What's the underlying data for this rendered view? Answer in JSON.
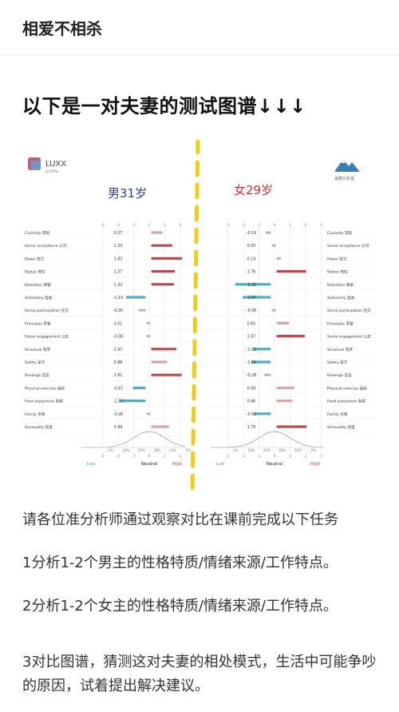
{
  "header": {
    "title": "相爱不相杀"
  },
  "post": {
    "title": "以下是一对夫妻的测试图谱↓↓↓"
  },
  "figure": {
    "logo_left": {
      "name": "LUXX",
      "sub": "profile"
    },
    "logo_right_text": "温格分析室",
    "male_label": "男31岁",
    "female_label": "女29岁",
    "scale_top": [
      "-3",
      "-2",
      "-1",
      "0",
      "1",
      "2",
      "3"
    ],
    "percent_labels": [
      "2%",
      "14%",
      "34%",
      "34%",
      "14%",
      "2%"
    ],
    "axis_low": "Low",
    "axis_neutral": "Neutral",
    "axis_high": "High",
    "colors": {
      "male_label": "#2f3f8f",
      "female_label": "#d03030",
      "high_bar": "#c0474d",
      "low_bar": "#4aaec9",
      "light_bar": "#d9a5a8",
      "grey_bar": "#b8b8b8",
      "divider": "#f3cc18"
    },
    "traits": [
      {
        "label": "Curiosity 求知",
        "male": 0.57,
        "female": -0.19,
        "male_text": "0.57",
        "female_text": "-0.19"
      },
      {
        "label": "Social acceptance 认可",
        "male": 1.2,
        "female": 0.03,
        "male_text": "1.20",
        "female_text": "0.03"
      },
      {
        "label": "Power 权力",
        "male": 1.83,
        "female": 0.14,
        "male_text": "1.83",
        "female_text": "0.14"
      },
      {
        "label": "Status 地位",
        "male": 1.37,
        "female": 1.76,
        "male_text": "1.37",
        "female_text": "1.76"
      },
      {
        "label": "Retention 保留",
        "male": 1.32,
        "female": -2.15,
        "male_text": "1.32",
        "female_text": "-2.15"
      },
      {
        "label": "Autonomy 自由",
        "male": -1.1,
        "female": -1.67,
        "male_text": "-1.10",
        "female_text": "-1.67"
      },
      {
        "label": "Social participation 社交",
        "male": -0.3,
        "female": -0.06,
        "male_text": "-0.30",
        "female_text": "-0.06"
      },
      {
        "label": "Principles 荣誉",
        "male": 0.01,
        "female": 0.65,
        "male_text": "0.01",
        "female_text": "0.65"
      },
      {
        "label": "Social engagement 公正",
        "male": -0.06,
        "female": 1.67,
        "male_text": "-0.06",
        "female_text": "1.67"
      },
      {
        "label": "Structure 有序",
        "male": 1.47,
        "female": -1.01,
        "male_text": "1.47",
        "female_text": "-1.01"
      },
      {
        "label": "Safety 安宁",
        "male": 0.88,
        "female": -1.11,
        "male_text": "0.88",
        "female_text": "-1.11"
      },
      {
        "label": "Revenge 还击",
        "male": 1.81,
        "female": -0.28,
        "male_text": "1.81",
        "female_text": "-0.28"
      },
      {
        "label": "Physical exercise 运动",
        "male": -0.67,
        "female": 0.99,
        "male_text": "-0.67",
        "female_text": "0.99"
      },
      {
        "label": "Food enjoyment 食欲",
        "male": -1.52,
        "female": 0.86,
        "male_text": "-1.52",
        "female_text": "0.86"
      },
      {
        "label": "Family 亲情",
        "male": -0.06,
        "female": -0.93,
        "male_text": "-0.06",
        "female_text": "-0.93"
      },
      {
        "label": "Sensuality 浪漫",
        "male": 0.99,
        "female": 1.79,
        "male_text": "0.99",
        "female_text": "1.79"
      }
    ]
  },
  "tasks": [
    "请各位准分析师通过观察对比在课前完成以下任务",
    "1分析1-2个男主的性格特质/情绪来源/工作特点。",
    "2分析1-2个女主的性格特质/情绪来源/工作特点。",
    "3对比图谱，猜测这对夫妻的相处模式，生活中可能争吵的原因，试着提出解决建议。"
  ]
}
